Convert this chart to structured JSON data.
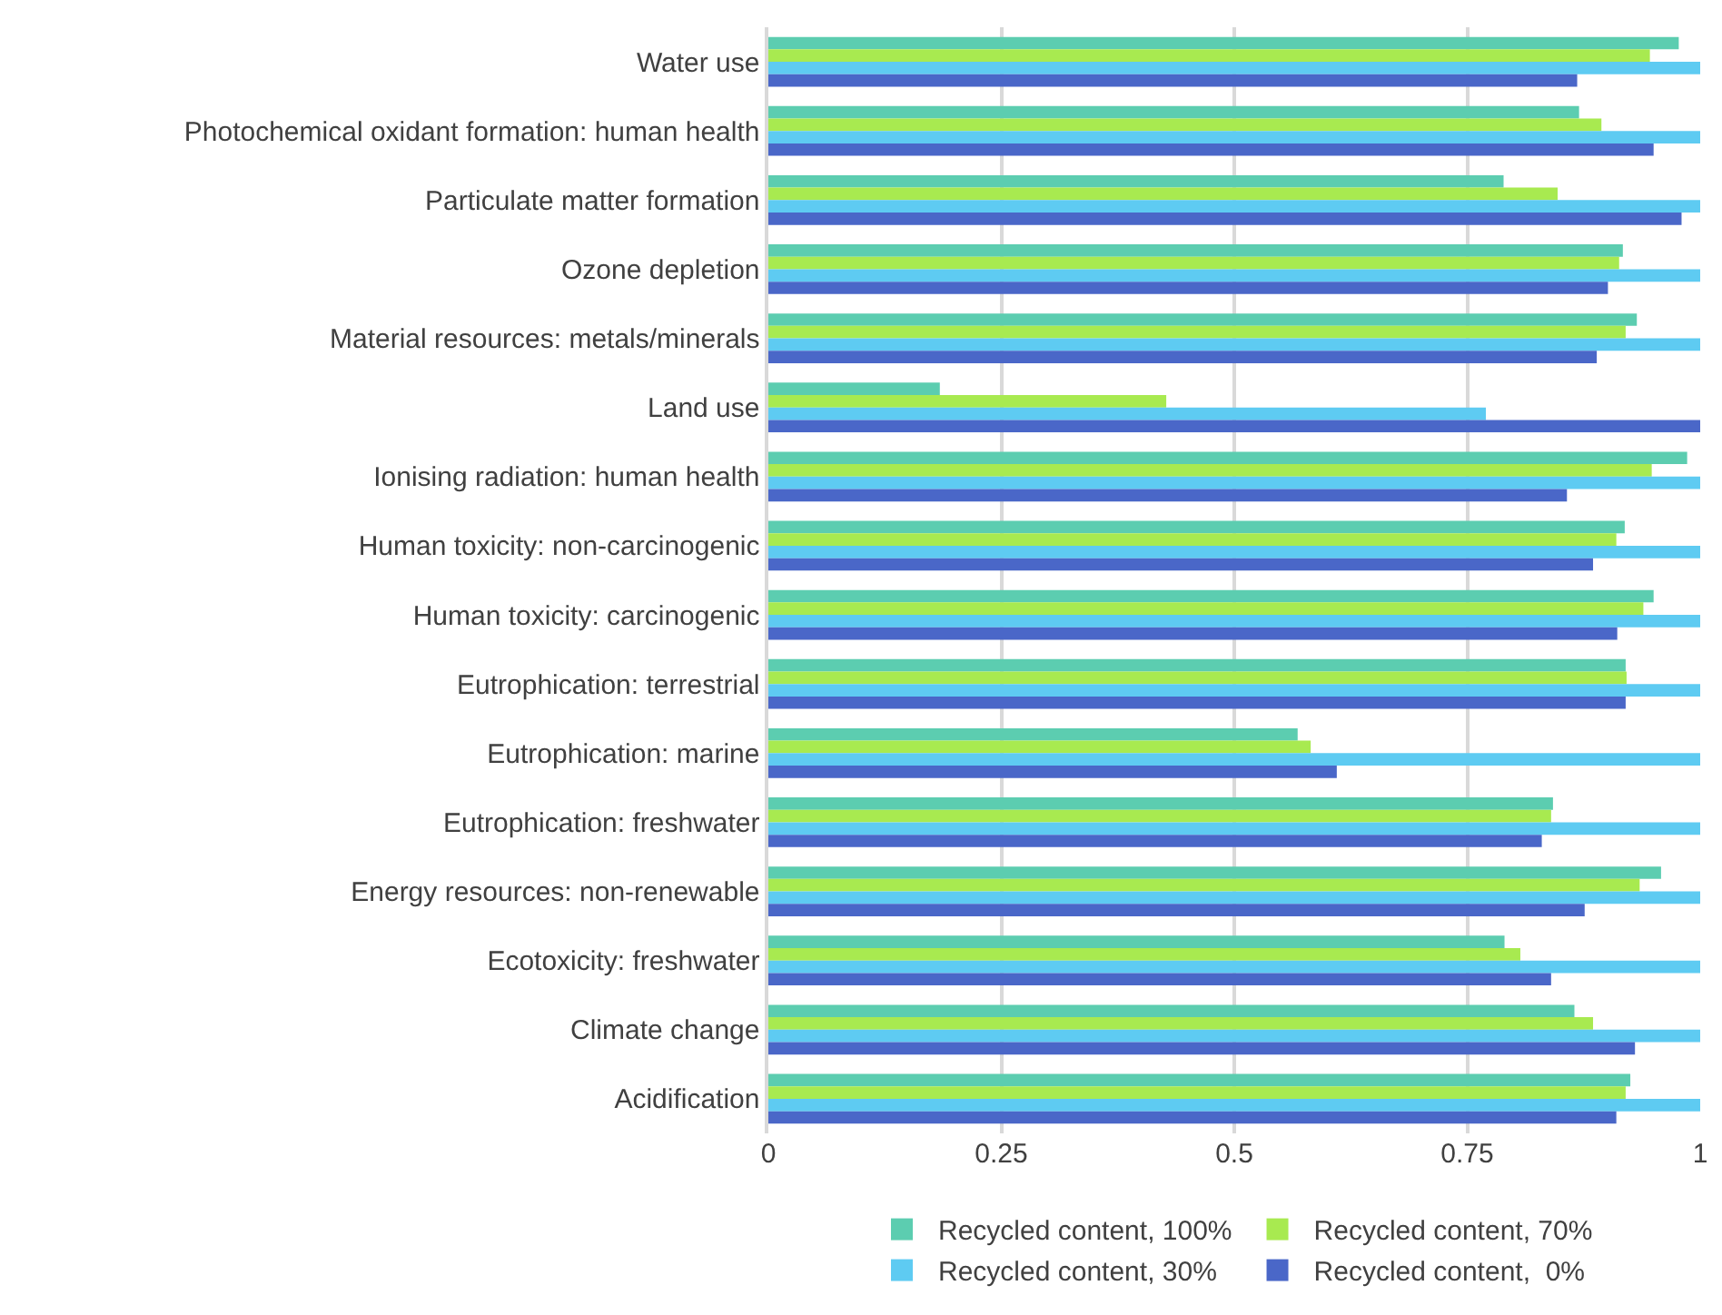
{
  "chart_data": {
    "type": "bar",
    "orientation": "horizontal",
    "categories": [
      "Water use",
      "Photochemical oxidant formation: human health",
      "Particulate matter formation",
      "Ozone depletion",
      "Material resources: metals/minerals",
      "Land use",
      "Ionising radiation: human health",
      "Human toxicity: non-carcinogenic",
      "Human toxicity: carcinogenic",
      "Eutrophication: terrestrial",
      "Eutrophication: marine",
      "Eutrophication: freshwater",
      "Energy resources: non-renewable",
      "Ecotoxicity: freshwater",
      "Climate change",
      "Acidification"
    ],
    "series": [
      {
        "name": "Recycled content, 100%",
        "color": "#5ccdb0",
        "values": [
          0.977,
          0.87,
          0.789,
          0.917,
          0.932,
          0.184,
          0.986,
          0.919,
          0.95,
          0.92,
          0.568,
          0.842,
          0.958,
          0.79,
          0.865,
          0.925
        ]
      },
      {
        "name": "Recycled content, 70%",
        "color": "#a8ea50",
        "values": [
          0.946,
          0.894,
          0.847,
          0.913,
          0.92,
          0.427,
          0.948,
          0.91,
          0.939,
          0.921,
          0.582,
          0.84,
          0.935,
          0.807,
          0.885,
          0.92
        ]
      },
      {
        "name": "Recycled content, 30%",
        "color": "#5ecbf2",
        "values": [
          1,
          1,
          1,
          1,
          1,
          0.77,
          1,
          1,
          1,
          1,
          1,
          1,
          1,
          1,
          1,
          1
        ]
      },
      {
        "name": "Recycled content,  0%",
        "color": "#4a67c8",
        "values": [
          0.868,
          0.95,
          0.98,
          0.901,
          0.889,
          1,
          0.857,
          0.885,
          0.911,
          0.92,
          0.61,
          0.83,
          0.876,
          0.84,
          0.93,
          0.91
        ]
      }
    ],
    "xlim": [
      0,
      1
    ],
    "xticks": [
      0,
      0.25,
      0.5,
      0.75,
      1
    ],
    "grid": "x",
    "legend": "bottom"
  }
}
